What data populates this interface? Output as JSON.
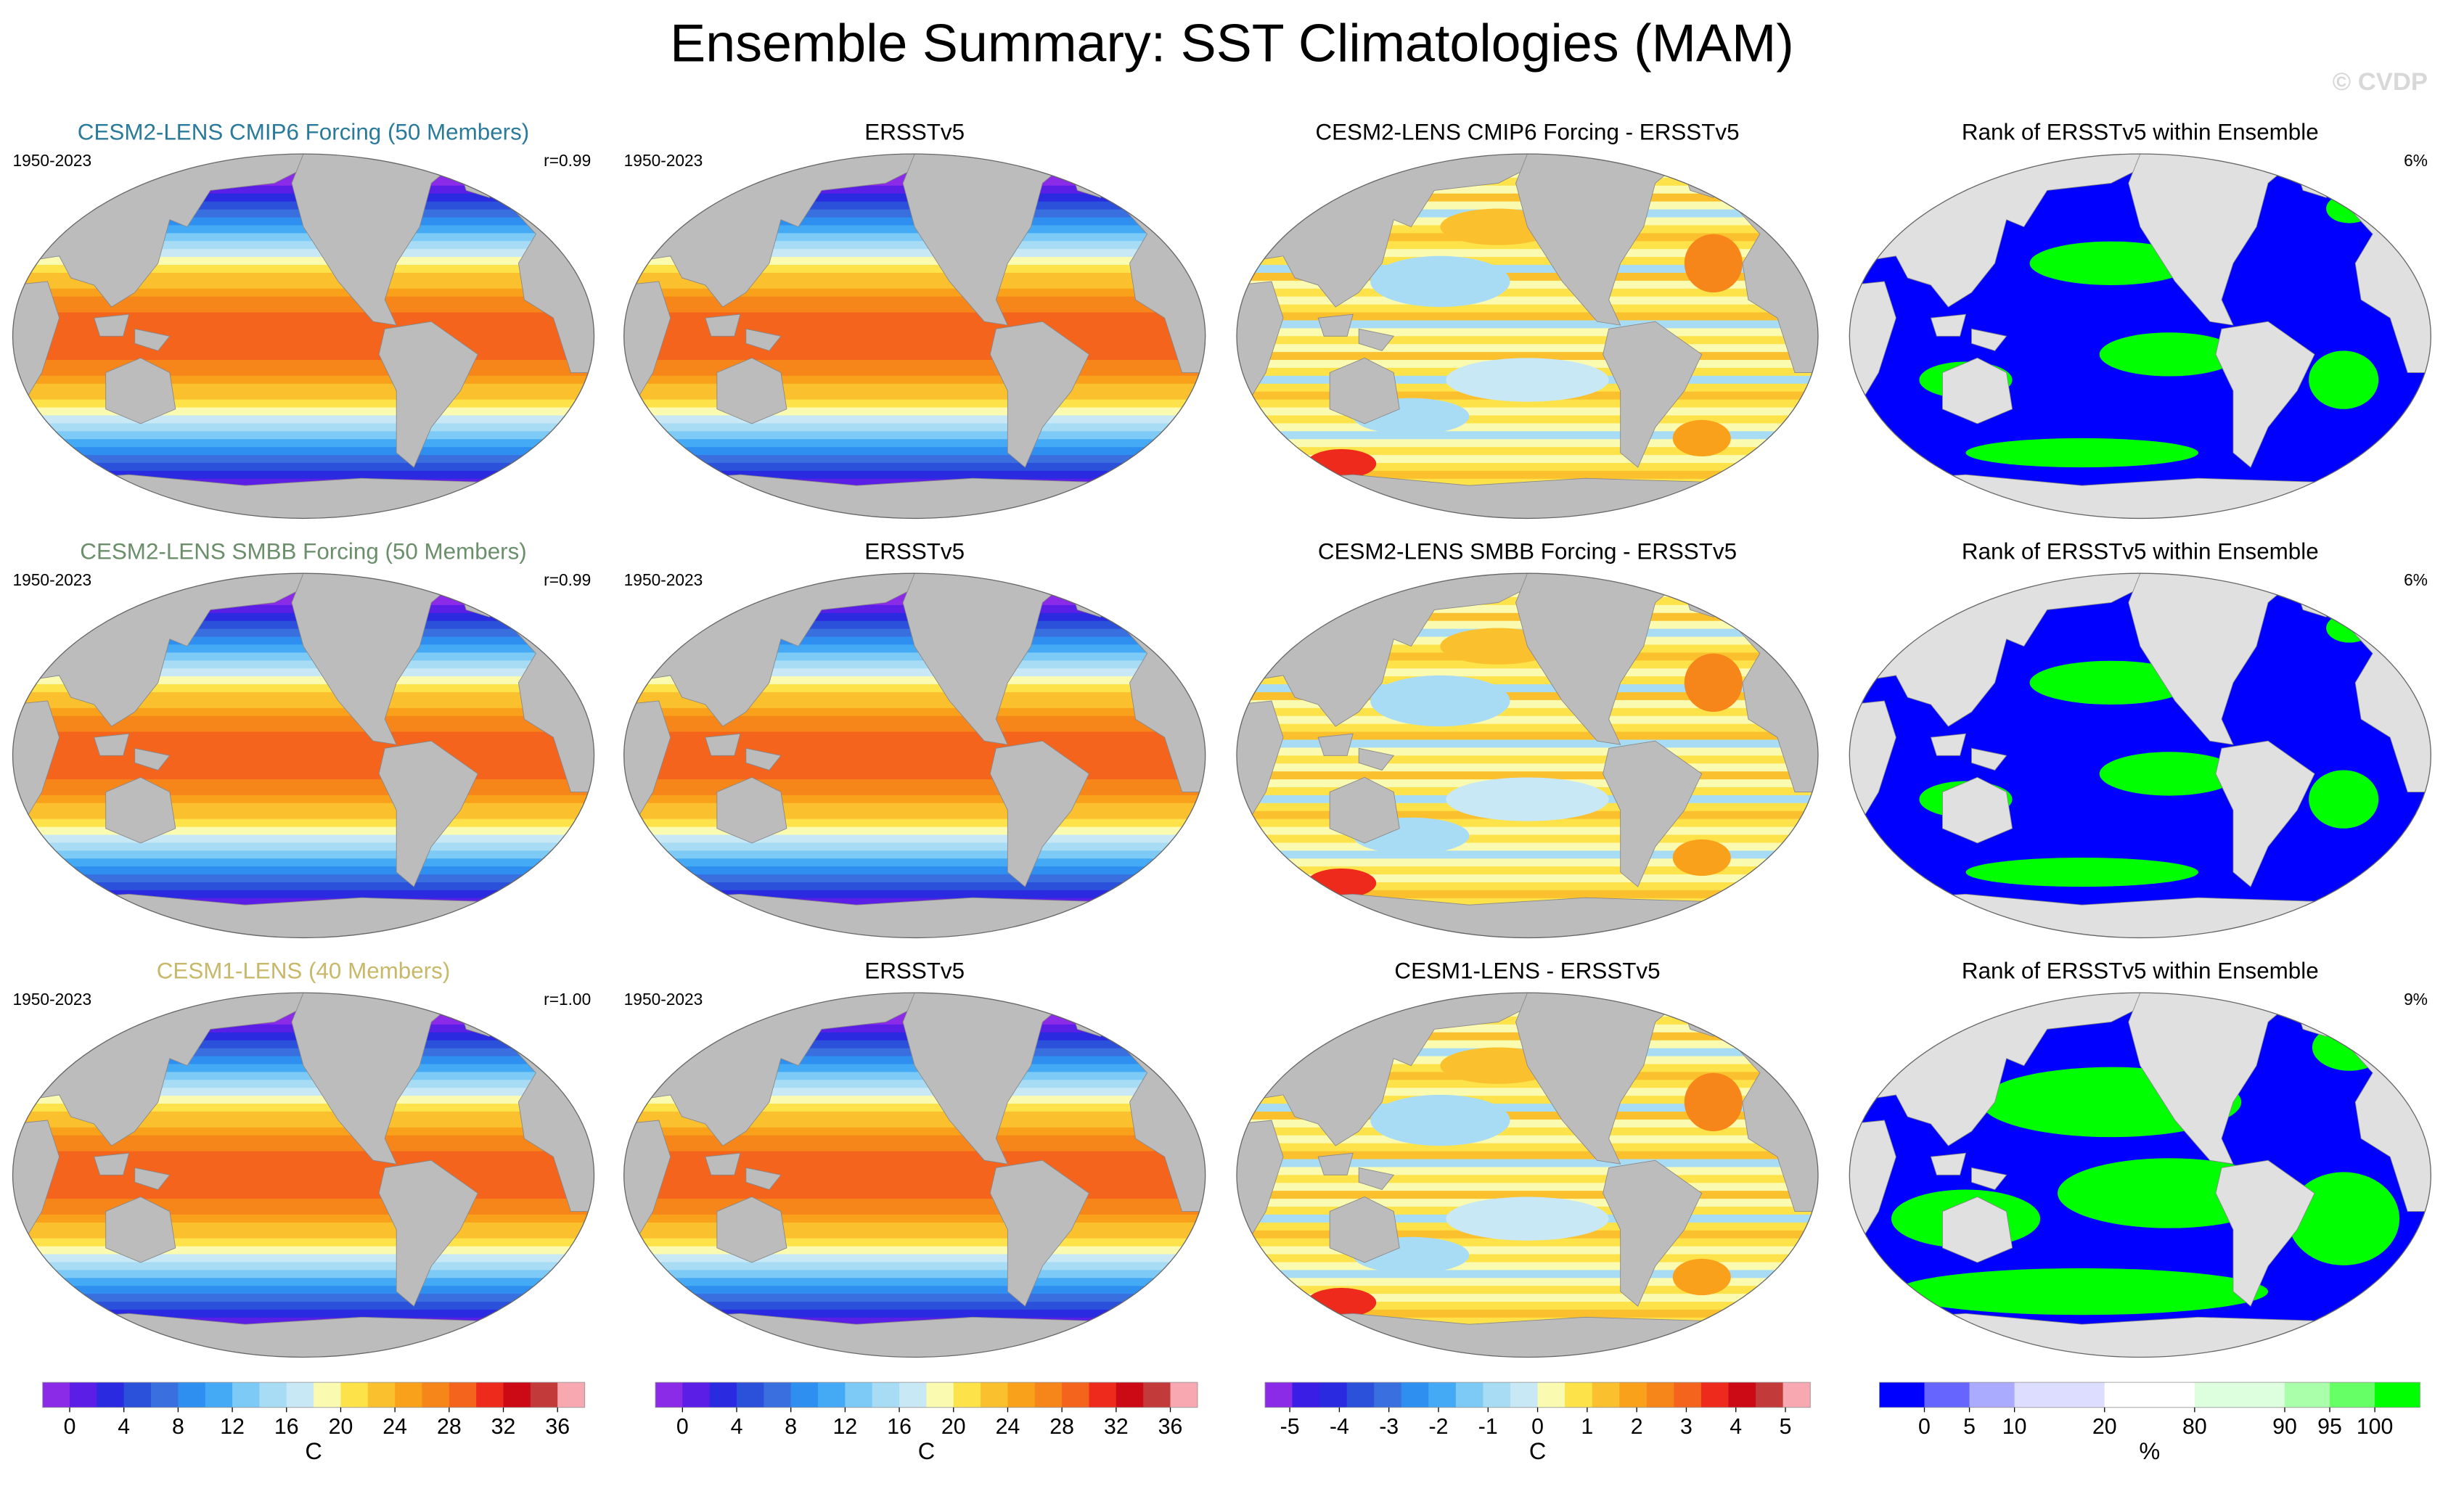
{
  "title": "Ensemble Summary: SST Climatologies (MAM)",
  "watermark": "© CVDP",
  "rows": [
    {
      "panels": [
        {
          "title": "CESM2-LENS CMIP6 Forcing (50 Members)",
          "title_color": "#2a7b9b",
          "left": "1950-2023",
          "right": "r=0.99"
        },
        {
          "title": "ERSSTv5",
          "left": "1950-2023"
        },
        {
          "title": "CESM2-LENS CMIP6 Forcing - ERSSTv5"
        },
        {
          "title": "Rank of ERSSTv5 within Ensemble",
          "right": "6%"
        }
      ]
    },
    {
      "panels": [
        {
          "title": "CESM2-LENS SMBB Forcing (50 Members)",
          "title_color": "#6b8f6b",
          "left": "1950-2023",
          "right": "r=0.99"
        },
        {
          "title": "ERSSTv5",
          "left": "1950-2023"
        },
        {
          "title": "CESM2-LENS SMBB Forcing - ERSSTv5"
        },
        {
          "title": "Rank of ERSSTv5 within Ensemble",
          "right": "6%"
        }
      ]
    },
    {
      "panels": [
        {
          "title": "CESM1-LENS (40 Members)",
          "title_color": "#c8b86a",
          "left": "1950-2023",
          "right": "r=1.00"
        },
        {
          "title": "ERSSTv5",
          "left": "1950-2023"
        },
        {
          "title": "CESM1-LENS - ERSSTv5"
        },
        {
          "title": "Rank of ERSSTv5 within Ensemble",
          "right": "9%"
        }
      ]
    }
  ],
  "colorbars": [
    {
      "unit": "C",
      "lim": [
        -2,
        38
      ],
      "ticks": [
        0,
        4,
        8,
        12,
        16,
        20,
        24,
        28,
        32,
        36
      ],
      "colors": [
        "#8b2be8",
        "#5a1ee6",
        "#2a2ae0",
        "#2b50d9",
        "#3a6fe0",
        "#2f8ff0",
        "#45aaf5",
        "#7ccaf5",
        "#a8dcf5",
        "#c8e8f5",
        "#fafab0",
        "#fde24a",
        "#fbc02d",
        "#f9a11b",
        "#f7861a",
        "#f4641c",
        "#ee2a1c",
        "#cc0a16",
        "#c23a3a",
        "#f7a8b0"
      ]
    },
    {
      "unit": "C",
      "lim": [
        -2,
        38
      ],
      "ticks": [
        0,
        4,
        8,
        12,
        16,
        20,
        24,
        28,
        32,
        36
      ],
      "colors": [
        "#8b2be8",
        "#5a1ee6",
        "#2a2ae0",
        "#2b50d9",
        "#3a6fe0",
        "#2f8ff0",
        "#45aaf5",
        "#7ccaf5",
        "#a8dcf5",
        "#c8e8f5",
        "#fafab0",
        "#fde24a",
        "#fbc02d",
        "#f9a11b",
        "#f7861a",
        "#f4641c",
        "#ee2a1c",
        "#cc0a16",
        "#c23a3a",
        "#f7a8b0"
      ]
    },
    {
      "unit": "C",
      "lim": [
        -5.5,
        5.5
      ],
      "ticks": [
        -5,
        -4,
        -3,
        -2,
        -1,
        0,
        1,
        2,
        3,
        4,
        5
      ],
      "colors": [
        "#8b2be8",
        "#3a1ee6",
        "#2a2ae0",
        "#2b50d9",
        "#3a6fe0",
        "#2f8ff0",
        "#45aaf5",
        "#7ccaf5",
        "#a8dcf5",
        "#c8e8f5",
        "#fafab0",
        "#fde24a",
        "#fbc02d",
        "#f9a11b",
        "#f7861a",
        "#f4641c",
        "#ee2a1c",
        "#cc0a16",
        "#c23a3a",
        "#f7a8b0"
      ]
    },
    {
      "unit": "%",
      "ticks": [
        0,
        5,
        10,
        20,
        80,
        90,
        95,
        100
      ],
      "colors": [
        "#0000ff",
        "#6666ff",
        "#aaaaff",
        "#ddddff",
        "#ffffff",
        "#ddffdd",
        "#aaffaa",
        "#66ff66",
        "#00ff00"
      ]
    }
  ]
}
